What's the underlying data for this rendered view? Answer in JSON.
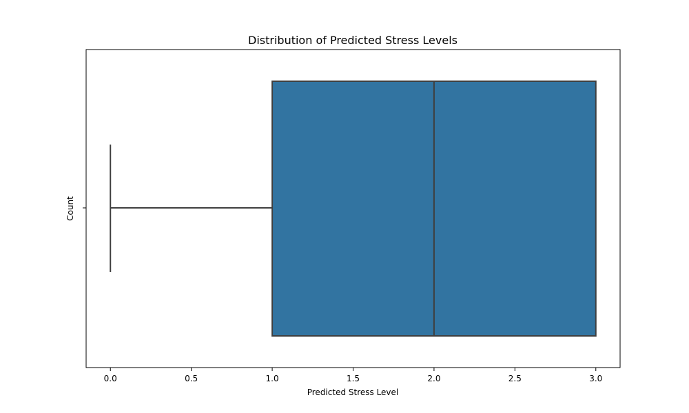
{
  "chart_data": {
    "type": "box",
    "orientation": "horizontal",
    "title": "Distribution of Predicted Stress Levels",
    "xlabel": "Predicted Stress Level",
    "ylabel": "Count",
    "xlim": [
      -0.15,
      3.15
    ],
    "x_ticks": [
      0.0,
      0.5,
      1.0,
      1.5,
      2.0,
      2.5,
      3.0
    ],
    "x_tick_labels": [
      "0.0",
      "0.5",
      "1.0",
      "1.5",
      "2.0",
      "2.5",
      "3.0"
    ],
    "box": {
      "whisker_low": 0.0,
      "q1": 1.0,
      "median": 2.0,
      "q3": 3.0,
      "whisker_high": 3.0
    },
    "grid": false,
    "box_color": "#3274a1",
    "line_color": "#3f3f3f"
  }
}
